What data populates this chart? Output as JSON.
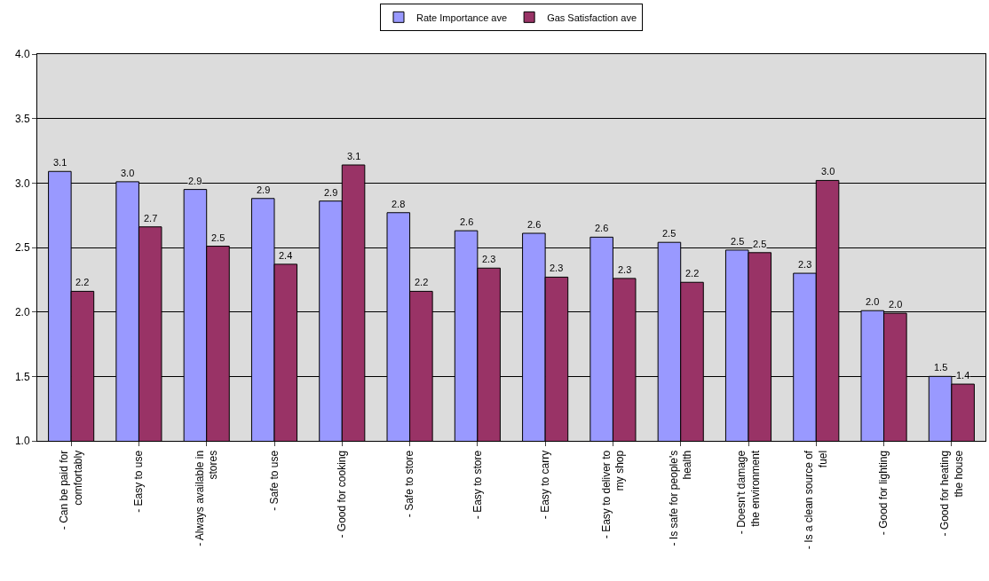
{
  "chart_data": {
    "type": "bar",
    "categories": [
      "- Can be paid for\ncomfortably",
      "- Easy to use",
      "- Always available in\nstores",
      "- Safe to use",
      "- Good for cooking",
      "- Safe to store",
      "- Easy to store",
      "- Easy to carry",
      "- Easy to deliver to\nmy shop",
      "- Is safe for people's\nhealth",
      "- Doesn't damage\nthe environment",
      "- Is a clean source of\nfuel",
      "- Good for lighting",
      "- Good for heating\nthe house"
    ],
    "series": [
      {
        "name": "Rate Importance ave",
        "color": "#9999ff",
        "values": [
          3.09,
          3.01,
          2.95,
          2.88,
          2.86,
          2.77,
          2.63,
          2.61,
          2.58,
          2.54,
          2.48,
          2.3,
          2.01,
          1.5
        ],
        "value_labels": [
          "3.1",
          "3.0",
          "2.9",
          "2.9",
          "2.9",
          "2.8",
          "2.6",
          "2.6",
          "2.6",
          "2.5",
          "2.5",
          "2.3",
          "2.0",
          "1.5"
        ]
      },
      {
        "name": "Gas Satisfaction ave",
        "color": "#993366",
        "values": [
          2.16,
          2.66,
          2.51,
          2.37,
          3.14,
          2.16,
          2.34,
          2.27,
          2.26,
          2.23,
          2.46,
          3.02,
          1.99,
          1.44
        ],
        "value_labels": [
          "2.2",
          "2.7",
          "2.5",
          "2.4",
          "3.1",
          "2.2",
          "2.3",
          "2.3",
          "2.3",
          "2.2",
          "2.5",
          "3.0",
          "2.0",
          "1.4"
        ]
      }
    ],
    "ylim": [
      1.0,
      4.0
    ],
    "yticks": [
      {
        "value": 1.0,
        "label": "1.0"
      },
      {
        "value": 1.5,
        "label": "1.5"
      },
      {
        "value": 2.0,
        "label": "2.0"
      },
      {
        "value": 2.5,
        "label": "2.5"
      },
      {
        "value": 3.0,
        "label": "3.0"
      },
      {
        "value": 3.5,
        "label": "3.5"
      },
      {
        "value": 4.0,
        "label": "4.0"
      }
    ],
    "grid": "y",
    "legend": "top"
  }
}
